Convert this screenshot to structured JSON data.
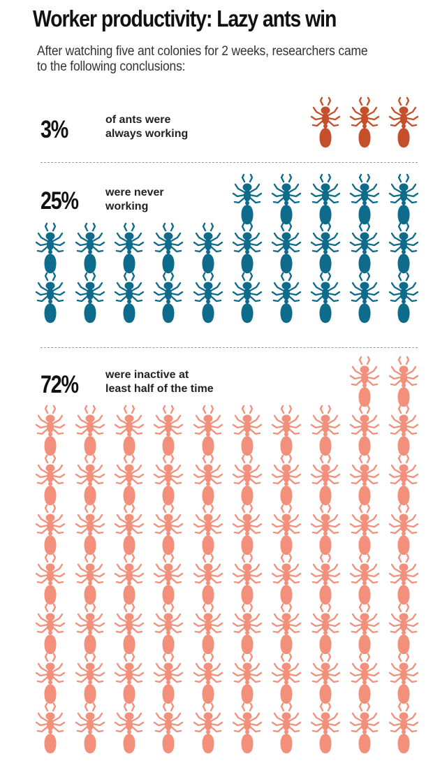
{
  "title": "Worker productivity: Lazy ants win",
  "subtitle": "After watching five ant colonies for 2 weeks, researchers came to the following conclusions:",
  "chart_data": {
    "type": "pictogram",
    "unit": "ant",
    "total_icons": 100,
    "categories": [
      {
        "percent_label": "3%",
        "description_line1": "of ants were",
        "description_line2": "always working",
        "value": 3,
        "color": "#c4502b"
      },
      {
        "percent_label": "25%",
        "description_line1": "were never",
        "description_line2": "working",
        "value": 25,
        "color": "#0e6b8c"
      },
      {
        "percent_label": "72%",
        "description_line1": "were inactive at",
        "description_line2": "least half of the time",
        "value": 72,
        "color": "#f2907b"
      }
    ]
  },
  "icons": {
    "ant": "ant-icon"
  }
}
